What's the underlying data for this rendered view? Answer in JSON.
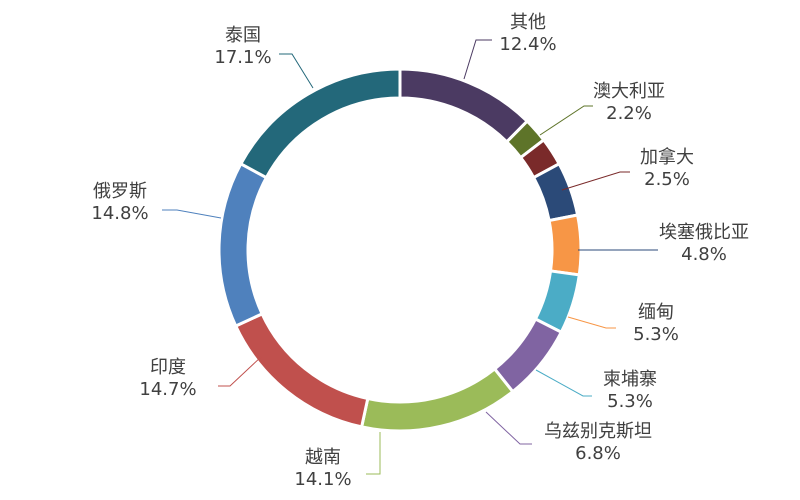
{
  "chart_data": {
    "type": "pie",
    "donut": true,
    "title": "",
    "slices": [
      {
        "label": "其他",
        "value": 12.4,
        "display": "12.4%",
        "color": "#4b3a62"
      },
      {
        "label": "澳大利亚",
        "value": 2.2,
        "display": "2.2%",
        "color": "#5e7429"
      },
      {
        "label": "加拿大",
        "value": 2.5,
        "display": "2.5%",
        "color": "#7a2a2a"
      },
      {
        "label": "埃塞俄比亚",
        "value": 4.8,
        "display": "4.8%",
        "color": "#2b4a78"
      },
      {
        "label": "缅甸",
        "value": 5.3,
        "display": "5.3%",
        "color": "#f79646"
      },
      {
        "label": "柬埔寨",
        "value": 5.3,
        "display": "5.3%",
        "color": "#4bacc6"
      },
      {
        "label": "乌兹别克斯坦",
        "value": 6.8,
        "display": "6.8%",
        "color": "#8064a2"
      },
      {
        "label": "越南",
        "value": 14.1,
        "display": "14.1%",
        "color": "#9bbb59"
      },
      {
        "label": "印度",
        "value": 14.7,
        "display": "14.7%",
        "color": "#c0504d"
      },
      {
        "label": "俄罗斯",
        "value": 14.8,
        "display": "14.8%",
        "color": "#4f81bd"
      },
      {
        "label": "泰国",
        "value": 17.1,
        "display": "17.1%",
        "color": "#23687a"
      }
    ]
  }
}
